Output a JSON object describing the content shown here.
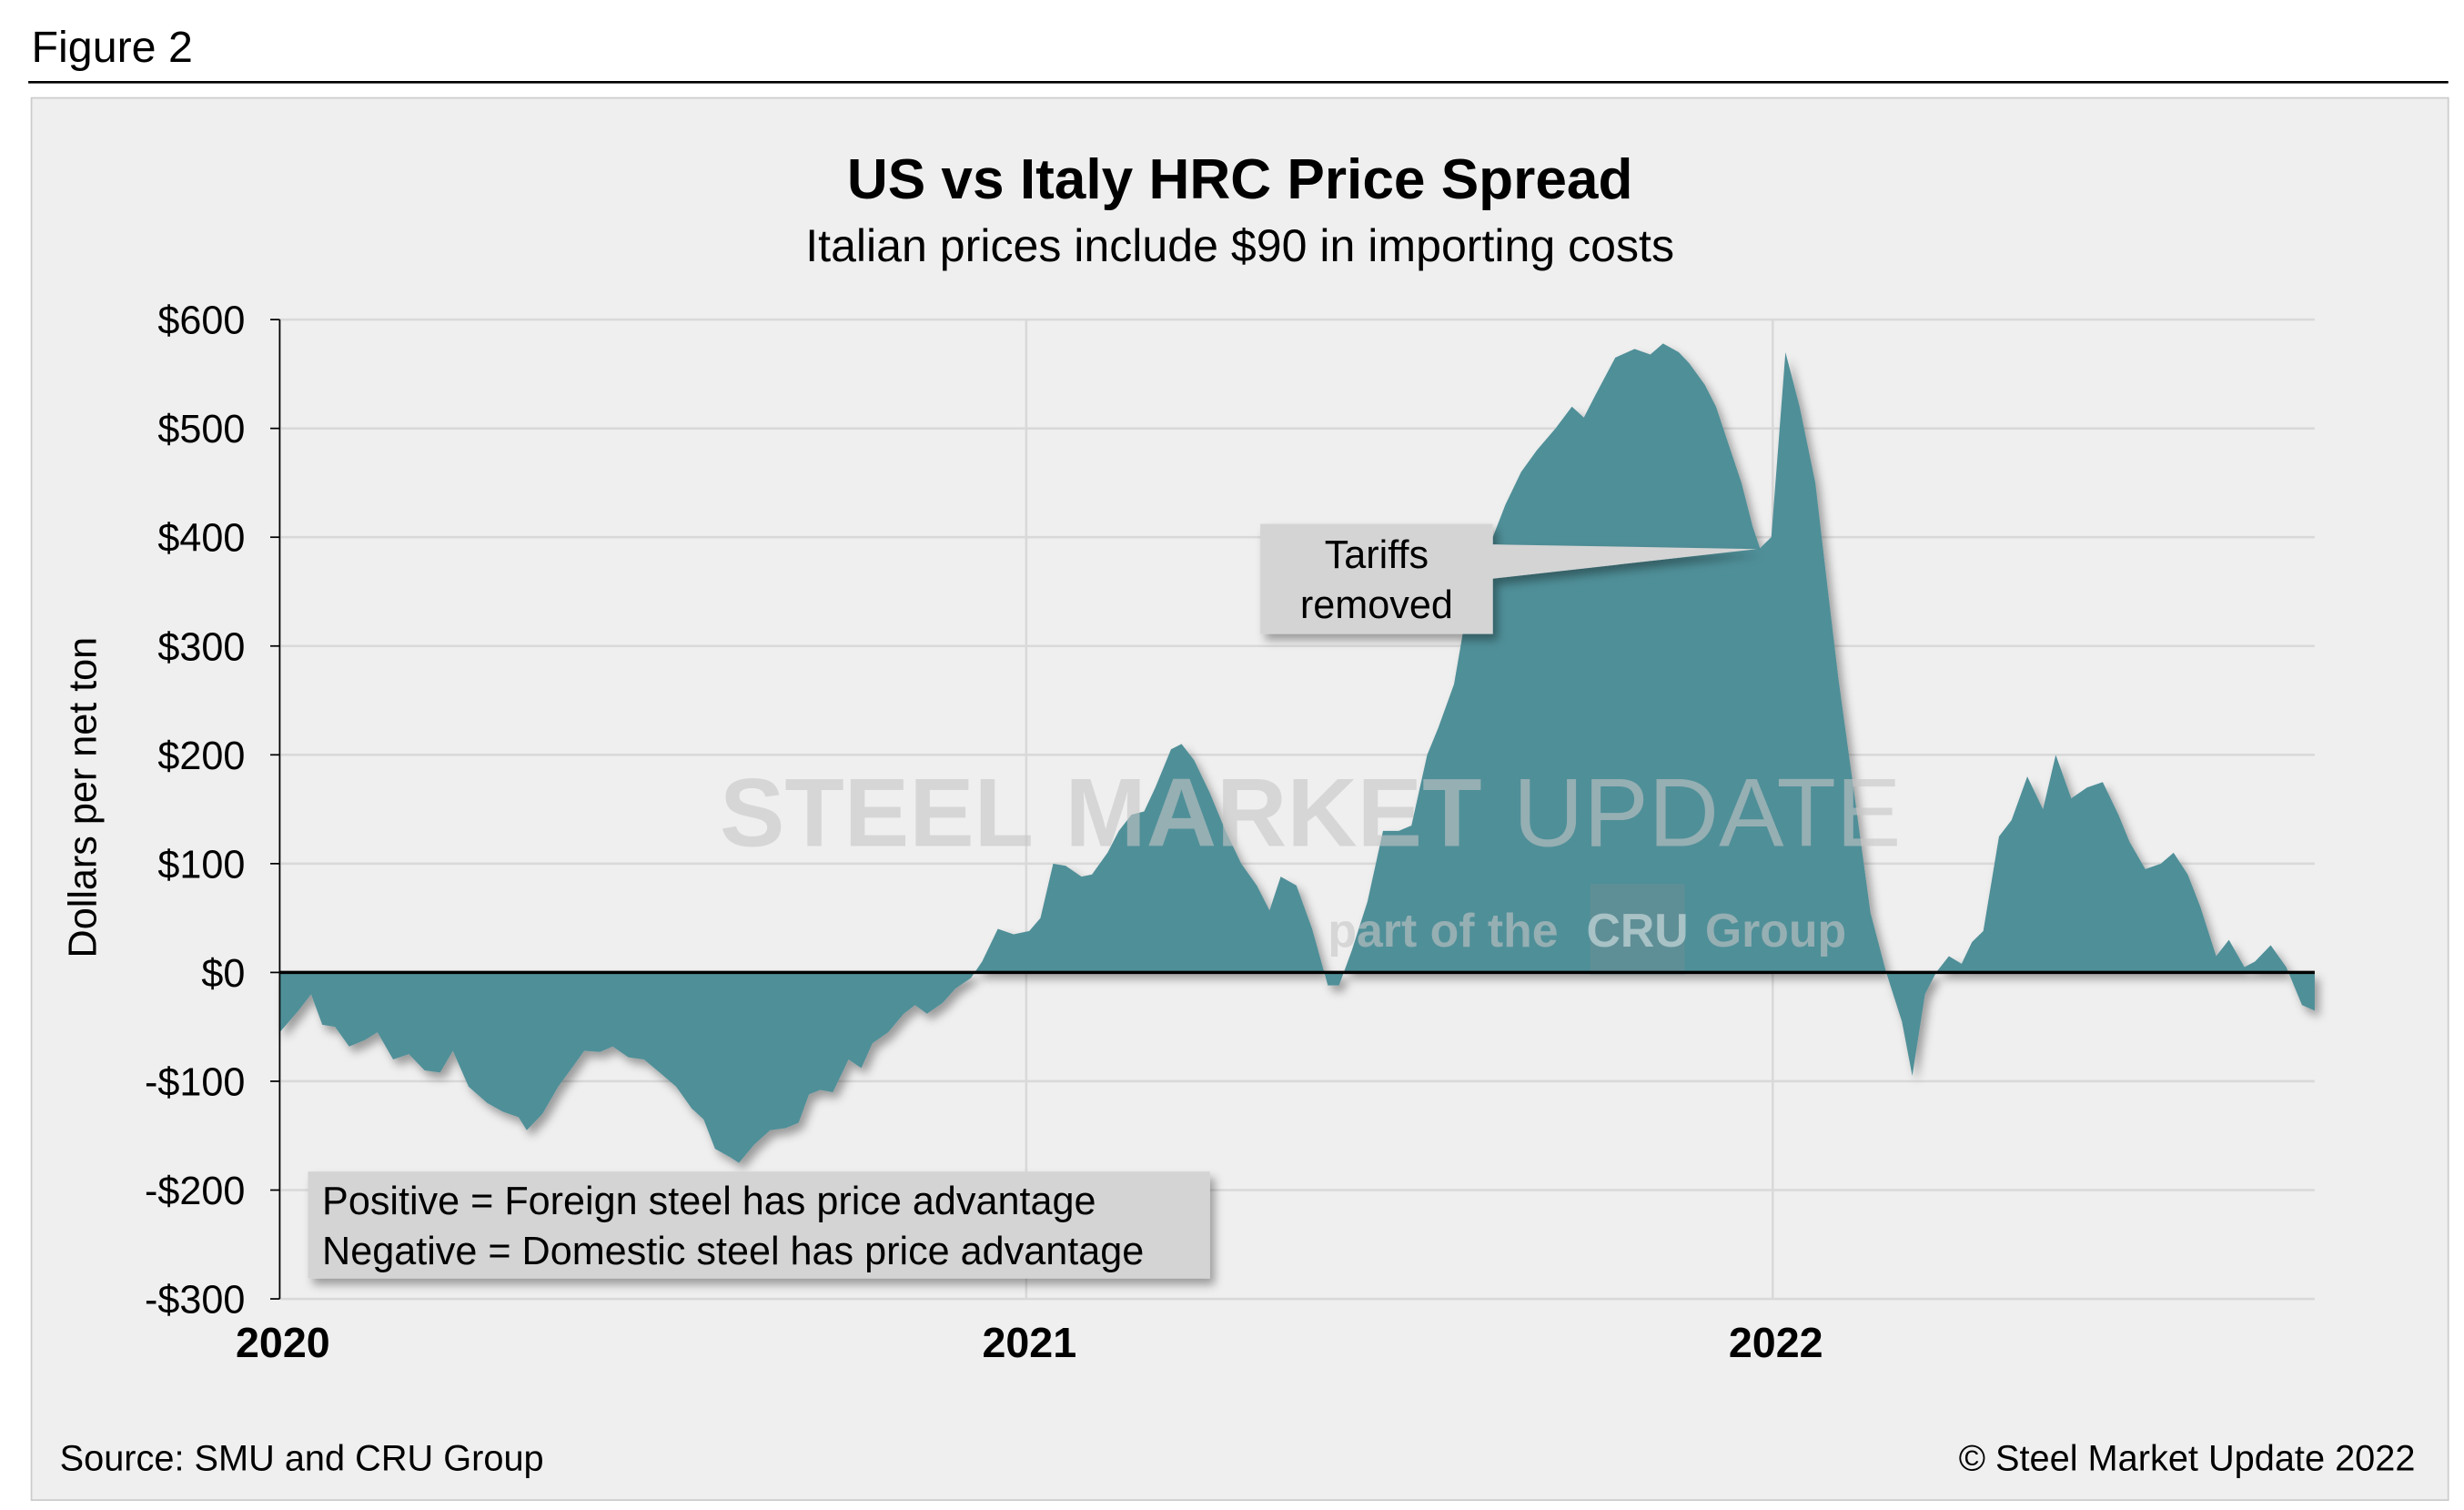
{
  "figure_label": "Figure 2",
  "colors": {
    "fill": "#508f98",
    "panel": "#efefef",
    "grid": "#d9d9d9",
    "callout": "#d4d4d4"
  },
  "watermark": {
    "main_bold": "STEEL",
    "main_light1": "MARKET",
    "main_light2": "UPDATE",
    "sub1": "part of the",
    "sub_logo": "CRU",
    "sub2": "Group"
  },
  "annotation": {
    "line1": "Tariffs",
    "line2": "removed"
  },
  "legend_box": {
    "line1": "Positive = Foreign steel has price advantage",
    "line2": "Negative = Domestic steel has price advantage"
  },
  "footer": {
    "source": "Source: SMU and CRU Group",
    "copyright": "© Steel Market Update 2022"
  },
  "chart_data": {
    "type": "area",
    "title": "US vs Italy HRC Price Spread",
    "subtitle": "Italian prices include $90 in importing costs",
    "xlabel": "",
    "ylabel": "Dollars per net ton",
    "x_unit": "years since Jan 2020",
    "xlim": [
      0,
      2.726
    ],
    "ylim": [
      -300,
      600
    ],
    "grid": true,
    "x_ticks": [
      {
        "value": 0,
        "label": "2020"
      },
      {
        "value": 1,
        "label": "2021"
      },
      {
        "value": 2,
        "label": "2022"
      }
    ],
    "y_ticks": [
      {
        "value": 600,
        "label": "$600"
      },
      {
        "value": 500,
        "label": "$500"
      },
      {
        "value": 400,
        "label": "$400"
      },
      {
        "value": 300,
        "label": "$300"
      },
      {
        "value": 200,
        "label": "$200"
      },
      {
        "value": 100,
        "label": "$100"
      },
      {
        "value": 0,
        "label": "$0"
      },
      {
        "value": -100,
        "label": "-$100"
      },
      {
        "value": -200,
        "label": "-$200"
      },
      {
        "value": -300,
        "label": "-$300"
      }
    ],
    "series": [
      {
        "name": "US vs Italy HRC spread",
        "points": [
          [
            0,
            -55
          ],
          [
            0.025,
            -35
          ],
          [
            0.042,
            -20
          ],
          [
            0.057,
            -48
          ],
          [
            0.074,
            -50
          ],
          [
            0.093,
            -68
          ],
          [
            0.114,
            -62
          ],
          [
            0.131,
            -55
          ],
          [
            0.152,
            -80
          ],
          [
            0.173,
            -75
          ],
          [
            0.194,
            -90
          ],
          [
            0.215,
            -92
          ],
          [
            0.232,
            -72
          ],
          [
            0.253,
            -105
          ],
          [
            0.278,
            -120
          ],
          [
            0.299,
            -128
          ],
          [
            0.32,
            -133
          ],
          [
            0.331,
            -145
          ],
          [
            0.352,
            -130
          ],
          [
            0.373,
            -105
          ],
          [
            0.389,
            -90
          ],
          [
            0.408,
            -72
          ],
          [
            0.429,
            -73
          ],
          [
            0.446,
            -68
          ],
          [
            0.467,
            -78
          ],
          [
            0.488,
            -80
          ],
          [
            0.509,
            -92
          ],
          [
            0.531,
            -105
          ],
          [
            0.552,
            -125
          ],
          [
            0.568,
            -135
          ],
          [
            0.583,
            -162
          ],
          [
            0.604,
            -170
          ],
          [
            0.615,
            -175
          ],
          [
            0.636,
            -158
          ],
          [
            0.657,
            -145
          ],
          [
            0.678,
            -143
          ],
          [
            0.695,
            -138
          ],
          [
            0.709,
            -112
          ],
          [
            0.724,
            -108
          ],
          [
            0.741,
            -110
          ],
          [
            0.762,
            -80
          ],
          [
            0.779,
            -88
          ],
          [
            0.794,
            -65
          ],
          [
            0.815,
            -55
          ],
          [
            0.836,
            -38
          ],
          [
            0.851,
            -30
          ],
          [
            0.867,
            -38
          ],
          [
            0.888,
            -28
          ],
          [
            0.905,
            -15
          ],
          [
            0.926,
            -5
          ],
          [
            0.941,
            10
          ],
          [
            0.962,
            40
          ],
          [
            0.983,
            35
          ],
          [
            1.004,
            38
          ],
          [
            1.019,
            50
          ],
          [
            1.036,
            100
          ],
          [
            1.053,
            98
          ],
          [
            1.074,
            88
          ],
          [
            1.088,
            90
          ],
          [
            1.109,
            110
          ],
          [
            1.124,
            130
          ],
          [
            1.141,
            145
          ],
          [
            1.158,
            148
          ],
          [
            1.173,
            170
          ],
          [
            1.194,
            205
          ],
          [
            1.208,
            210
          ],
          [
            1.225,
            195
          ],
          [
            1.246,
            165
          ],
          [
            1.267,
            130
          ],
          [
            1.288,
            100
          ],
          [
            1.309,
            80
          ],
          [
            1.326,
            57
          ],
          [
            1.341,
            88
          ],
          [
            1.362,
            80
          ],
          [
            1.383,
            40
          ],
          [
            1.404,
            -12
          ],
          [
            1.419,
            -12
          ],
          [
            1.436,
            20
          ],
          [
            1.457,
            65
          ],
          [
            1.478,
            130
          ],
          [
            1.499,
            130
          ],
          [
            1.516,
            135
          ],
          [
            1.537,
            200
          ],
          [
            1.552,
            225
          ],
          [
            1.573,
            265
          ],
          [
            1.587,
            320
          ],
          [
            1.604,
            365
          ],
          [
            1.625,
            400
          ],
          [
            1.642,
            430
          ],
          [
            1.663,
            460
          ],
          [
            1.684,
            480
          ],
          [
            1.709,
            500
          ],
          [
            1.731,
            520
          ],
          [
            1.747,
            510
          ],
          [
            1.762,
            530
          ],
          [
            1.789,
            565
          ],
          [
            1.815,
            573
          ],
          [
            1.836,
            568
          ],
          [
            1.853,
            578
          ],
          [
            1.874,
            570
          ],
          [
            1.888,
            560
          ],
          [
            1.909,
            540
          ],
          [
            1.924,
            520
          ],
          [
            1.941,
            485
          ],
          [
            1.958,
            450
          ],
          [
            1.973,
            410
          ],
          [
            1.983,
            390
          ],
          [
            1.998,
            400
          ],
          [
            2.017,
            570
          ],
          [
            2.036,
            520
          ],
          [
            2.057,
            450
          ],
          [
            2.074,
            350
          ],
          [
            2.088,
            270
          ],
          [
            2.109,
            165
          ],
          [
            2.131,
            55
          ],
          [
            2.152,
            0
          ],
          [
            2.173,
            -45
          ],
          [
            2.187,
            -95
          ],
          [
            2.204,
            -20
          ],
          [
            2.219,
            0
          ],
          [
            2.236,
            15
          ],
          [
            2.253,
            8
          ],
          [
            2.267,
            28
          ],
          [
            2.282,
            38
          ],
          [
            2.303,
            125
          ],
          [
            2.32,
            140
          ],
          [
            2.341,
            180
          ],
          [
            2.362,
            150
          ],
          [
            2.379,
            200
          ],
          [
            2.4,
            160
          ],
          [
            2.421,
            170
          ],
          [
            2.442,
            175
          ],
          [
            2.463,
            145
          ],
          [
            2.478,
            120
          ],
          [
            2.499,
            95
          ],
          [
            2.52,
            100
          ],
          [
            2.537,
            110
          ],
          [
            2.556,
            90
          ],
          [
            2.573,
            60
          ],
          [
            2.594,
            15
          ],
          [
            2.611,
            30
          ],
          [
            2.632,
            5
          ],
          [
            2.646,
            10
          ],
          [
            2.667,
            25
          ],
          [
            2.688,
            5
          ],
          [
            2.709,
            -30
          ],
          [
            2.726,
            -35
          ]
        ]
      }
    ]
  }
}
